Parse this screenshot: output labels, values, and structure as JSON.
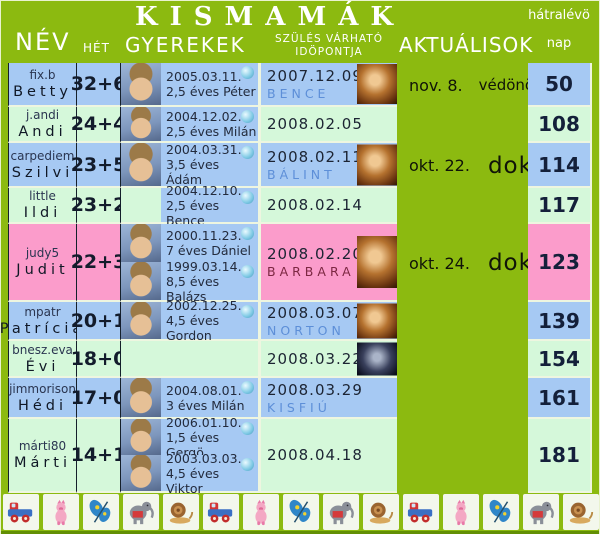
{
  "title": "KISMAMÁK",
  "header": {
    "nev": "NÉV",
    "het": "HÉT",
    "gyerekek": "GYEREKEK",
    "szules_line1": "SZÜLÉS VÁRHATÓ",
    "szules_line2": "IDÖPONTJA",
    "aktualisok": "AKTUÁLISOK",
    "hatralevo": "hátralévö",
    "nap": "nap"
  },
  "colors": {
    "green": "#8cba10",
    "blue": "#a6c9f3",
    "mint": "#d5f8da",
    "pink": "#fb9ccb",
    "babyblue": "#5d8fd8",
    "maroon": "#7c2742"
  },
  "rows": [
    {
      "nick": "fix.b",
      "name": "Betty",
      "week": "32+6",
      "color": "blue",
      "children": [
        {
          "date": "2005.03.11.",
          "label": "2,5 éves Péter",
          "photo": true
        }
      ],
      "due": "2007.12.09",
      "baby": "BENCE",
      "baby_color": "blue",
      "scan": "brown",
      "actual_date": "nov. 8.",
      "actual_who": "védönö",
      "actual_style": "small",
      "days": "50"
    },
    {
      "nick": "j.andi",
      "name": "Andi",
      "week": "24+4",
      "color": "mint",
      "children": [
        {
          "date": "2004.12.02.",
          "label": "2,5 éves Milán",
          "photo": true
        }
      ],
      "due": "2008.02.05",
      "baby": "",
      "baby_color": "",
      "scan": "",
      "actual_date": "",
      "actual_who": "",
      "actual_style": "",
      "days": "108"
    },
    {
      "nick": "carpediem",
      "name": "Szilvi",
      "week": "23+5",
      "color": "blue",
      "children": [
        {
          "date": "2004.03.31.",
          "label": "3,5 éves Ádám",
          "photo": true
        }
      ],
      "due": "2008.02.11",
      "baby": "BÁLINT",
      "baby_color": "blue",
      "scan": "brown",
      "actual_date": "okt. 22.",
      "actual_who": "doki",
      "actual_style": "big",
      "days": "114"
    },
    {
      "nick": "little",
      "name": "Ildi",
      "week": "23+2",
      "color": "mint",
      "children": [
        {
          "date": "2004.12.10.",
          "label": "2,5 éves Bence",
          "photo": false
        }
      ],
      "due": "2008.02.14",
      "baby": "",
      "baby_color": "",
      "scan": "",
      "actual_date": "",
      "actual_who": "",
      "actual_style": "",
      "days": "117"
    },
    {
      "nick": "judy5",
      "name": "Judit",
      "week": "22+3",
      "color": "pink",
      "children": [
        {
          "date": "2000.11.23.",
          "label": "7 éves Dániel",
          "photo": true
        },
        {
          "date": "1999.03.14.",
          "label": "8,5 éves Balázs",
          "photo": true
        }
      ],
      "due": "2008.02.20",
      "baby": "BARBARA",
      "baby_color": "maroon",
      "scan": "brown",
      "actual_date": "okt. 24.",
      "actual_who": "doki",
      "actual_style": "big",
      "days": "123"
    },
    {
      "nick": "mpatr",
      "name": "Patrícia",
      "week": "20+1",
      "color": "blue",
      "children": [
        {
          "date": "2002.12.25.",
          "label": "4,5 éves Gordon",
          "photo": true
        }
      ],
      "due": "2008.03.07",
      "baby": "NORTON",
      "baby_color": "blue",
      "scan": "brown",
      "actual_date": "",
      "actual_who": "",
      "actual_style": "",
      "days": "139"
    },
    {
      "nick": "bnesz.eva",
      "name": "Évi",
      "week": "18+0",
      "color": "mint",
      "children": [],
      "due": "2008.03.22",
      "baby": "",
      "baby_color": "",
      "scan": "dark",
      "actual_date": "",
      "actual_who": "",
      "actual_style": "",
      "days": "154"
    },
    {
      "nick": "jimmorison",
      "name": "Hédi",
      "week": "17+0",
      "color": "blue",
      "children": [
        {
          "date": "2004.08.01.",
          "label": "3 éves Milán",
          "photo": true
        }
      ],
      "due": "2008.03.29",
      "baby": "KISFIÚ",
      "baby_color": "blue",
      "scan": "",
      "actual_date": "",
      "actual_who": "",
      "actual_style": "",
      "days": "161"
    },
    {
      "nick": "márti80",
      "name": "Márti",
      "week": "14+1",
      "color": "mint",
      "children": [
        {
          "date": "2006.01.10.",
          "label": "1,5 éves Gergö",
          "photo": true
        },
        {
          "date": "2003.03.03.",
          "label": "4,5 éves Viktor",
          "photo": true
        }
      ],
      "due": "2008.04.18",
      "baby": "",
      "baby_color": "",
      "scan": "",
      "actual_date": "",
      "actual_who": "",
      "actual_style": "",
      "days": "181"
    }
  ],
  "footer_icons": [
    "truck",
    "pig",
    "butterfly",
    "elephant",
    "snail",
    "truck",
    "pig",
    "butterfly",
    "elephant",
    "snail",
    "truck",
    "pig",
    "butterfly",
    "elephant",
    "snail"
  ]
}
